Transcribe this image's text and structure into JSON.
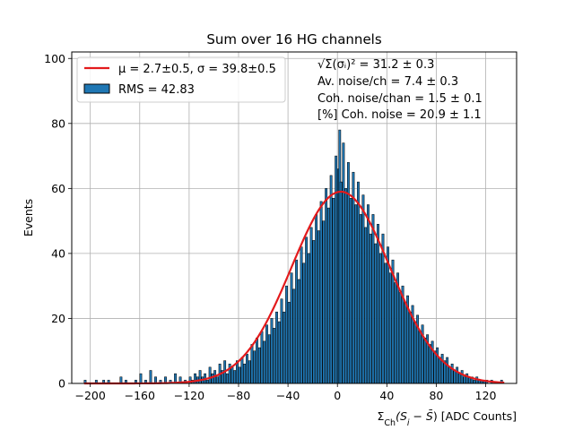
{
  "chart_data": {
    "type": "bar",
    "title": "Sum over 16 HG channels",
    "xlabel": "Σ_Ch(S_i − S̄) [ADC Counts]",
    "ylabel": "Events",
    "xlim": [
      -215,
      145
    ],
    "ylim": [
      0,
      102
    ],
    "grid": true,
    "x_ticks": [
      -200,
      -160,
      -120,
      -80,
      -40,
      0,
      40,
      80,
      120
    ],
    "y_ticks": [
      0,
      20,
      40,
      60,
      80,
      100
    ],
    "legend_position": "top-left",
    "legend": [
      {
        "label": "μ = 2.7±0.5, σ = 39.8±0.5",
        "kind": "line",
        "color": "#e31a1c"
      },
      {
        "label": "RMS = 42.83",
        "kind": "patch",
        "color": "#1f77b4"
      }
    ],
    "annotations": [
      "√Σ(σᵢ)² = 31.2 ± 0.3",
      "Av. noise/ch  = 7.4 ± 0.3",
      "Coh. noise/chan  = 1.5 ± 0.1",
      "[%] Coh. noise  = 20.9 ± 1.1"
    ],
    "fit": {
      "mu": 2.7,
      "sigma": 39.8,
      "amplitude": 59,
      "color": "#e31a1c"
    },
    "histogram": {
      "bin_width": 1.7,
      "bar_color": "#1f77b4",
      "bins": [
        [
          -205,
          1
        ],
        [
          -200,
          0
        ],
        [
          -196,
          1
        ],
        [
          -190,
          1
        ],
        [
          -186,
          1
        ],
        [
          -180,
          0
        ],
        [
          -176,
          2
        ],
        [
          -172,
          1
        ],
        [
          -168,
          0
        ],
        [
          -164,
          1
        ],
        [
          -160,
          3
        ],
        [
          -156,
          1
        ],
        [
          -152,
          4
        ],
        [
          -148,
          2
        ],
        [
          -144,
          1
        ],
        [
          -140,
          2
        ],
        [
          -136,
          1
        ],
        [
          -132,
          3
        ],
        [
          -128,
          2
        ],
        [
          -124,
          1
        ],
        [
          -122,
          0
        ],
        [
          -120,
          2
        ],
        [
          -118,
          1
        ],
        [
          -116,
          3
        ],
        [
          -114,
          2
        ],
        [
          -112,
          4
        ],
        [
          -110,
          2
        ],
        [
          -108,
          3
        ],
        [
          -106,
          1
        ],
        [
          -104,
          5
        ],
        [
          -102,
          3
        ],
        [
          -100,
          4
        ],
        [
          -98,
          2
        ],
        [
          -96,
          6
        ],
        [
          -94,
          4
        ],
        [
          -92,
          7
        ],
        [
          -90,
          3
        ],
        [
          -88,
          6
        ],
        [
          -86,
          5
        ],
        [
          -84,
          4
        ],
        [
          -82,
          7
        ],
        [
          -80,
          5
        ],
        [
          -78,
          8
        ],
        [
          -76,
          6
        ],
        [
          -74,
          9
        ],
        [
          -72,
          7
        ],
        [
          -70,
          12
        ],
        [
          -68,
          10
        ],
        [
          -66,
          14
        ],
        [
          -64,
          11
        ],
        [
          -62,
          16
        ],
        [
          -60,
          13
        ],
        [
          -58,
          18
        ],
        [
          -56,
          15
        ],
        [
          -54,
          20
        ],
        [
          -52,
          17
        ],
        [
          -50,
          22
        ],
        [
          -48,
          19
        ],
        [
          -46,
          26
        ],
        [
          -44,
          22
        ],
        [
          -42,
          30
        ],
        [
          -40,
          25
        ],
        [
          -38,
          34
        ],
        [
          -36,
          29
        ],
        [
          -34,
          38
        ],
        [
          -32,
          32
        ],
        [
          -30,
          42
        ],
        [
          -28,
          37
        ],
        [
          -26,
          45
        ],
        [
          -24,
          40
        ],
        [
          -22,
          48
        ],
        [
          -20,
          44
        ],
        [
          -18,
          52
        ],
        [
          -16,
          47
        ],
        [
          -14,
          56
        ],
        [
          -12,
          50
        ],
        [
          -10,
          60
        ],
        [
          -8,
          54
        ],
        [
          -6,
          64
        ],
        [
          -4,
          57
        ],
        [
          -2,
          70
        ],
        [
          0,
          66
        ],
        [
          1,
          78
        ],
        [
          2,
          62
        ],
        [
          4,
          74
        ],
        [
          6,
          60
        ],
        [
          8,
          68
        ],
        [
          10,
          57
        ],
        [
          12,
          65
        ],
        [
          14,
          55
        ],
        [
          16,
          62
        ],
        [
          18,
          52
        ],
        [
          20,
          58
        ],
        [
          22,
          48
        ],
        [
          24,
          55
        ],
        [
          26,
          46
        ],
        [
          28,
          52
        ],
        [
          30,
          43
        ],
        [
          32,
          49
        ],
        [
          34,
          40
        ],
        [
          36,
          46
        ],
        [
          38,
          37
        ],
        [
          40,
          42
        ],
        [
          42,
          34
        ],
        [
          44,
          38
        ],
        [
          46,
          31
        ],
        [
          48,
          34
        ],
        [
          50,
          28
        ],
        [
          52,
          30
        ],
        [
          54,
          25
        ],
        [
          56,
          27
        ],
        [
          58,
          22
        ],
        [
          60,
          24
        ],
        [
          62,
          19
        ],
        [
          64,
          21
        ],
        [
          66,
          16
        ],
        [
          68,
          18
        ],
        [
          70,
          14
        ],
        [
          72,
          15
        ],
        [
          74,
          12
        ],
        [
          76,
          13
        ],
        [
          78,
          10
        ],
        [
          80,
          11
        ],
        [
          82,
          8
        ],
        [
          84,
          9
        ],
        [
          86,
          7
        ],
        [
          88,
          8
        ],
        [
          90,
          5
        ],
        [
          92,
          6
        ],
        [
          94,
          4
        ],
        [
          96,
          5
        ],
        [
          98,
          3
        ],
        [
          100,
          4
        ],
        [
          102,
          2
        ],
        [
          104,
          3
        ],
        [
          106,
          2
        ],
        [
          108,
          2
        ],
        [
          110,
          1
        ],
        [
          112,
          2
        ],
        [
          114,
          1
        ],
        [
          116,
          1
        ],
        [
          118,
          1
        ],
        [
          120,
          1
        ],
        [
          124,
          1
        ],
        [
          128,
          0
        ],
        [
          132,
          1
        ]
      ]
    }
  }
}
